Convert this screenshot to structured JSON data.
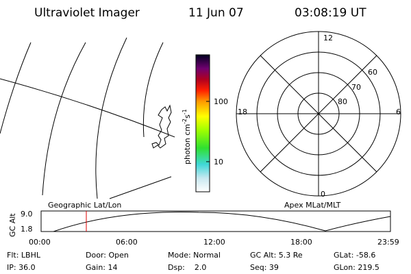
{
  "header": {
    "instrument": "Ultraviolet Imager",
    "date": "11 Jun 07",
    "time": "03:08:19 UT"
  },
  "colorbar": {
    "label": "photon cm",
    "exp1": "-2",
    "mid": "s",
    "exp2": "-1",
    "ticks": [
      "100",
      "10"
    ]
  },
  "polar": {
    "mlt_labels": [
      "12",
      "6",
      "0",
      "18"
    ],
    "mlat_labels": [
      "60",
      "70",
      "80"
    ]
  },
  "altitude_plot": {
    "left_label": "Geographic Lat/Lon",
    "right_label": "Apex MLat/MLT",
    "y_label": "GC Alt",
    "y_ticks": [
      "9.0",
      "1.8"
    ],
    "x_ticks": [
      "00:00",
      "06:00",
      "12:00",
      "18:00",
      "23:59"
    ]
  },
  "status": [
    [
      "Flt: LBHL",
      "Door: Open",
      "Mode: Normal",
      "GC Alt: 5.3 Re",
      "GLat: -58.6"
    ],
    [
      "IP: 36.0",
      "Gain: 14",
      "Dsp:    2.0",
      "Seq: 39",
      "GLon: 219.5"
    ]
  ]
}
